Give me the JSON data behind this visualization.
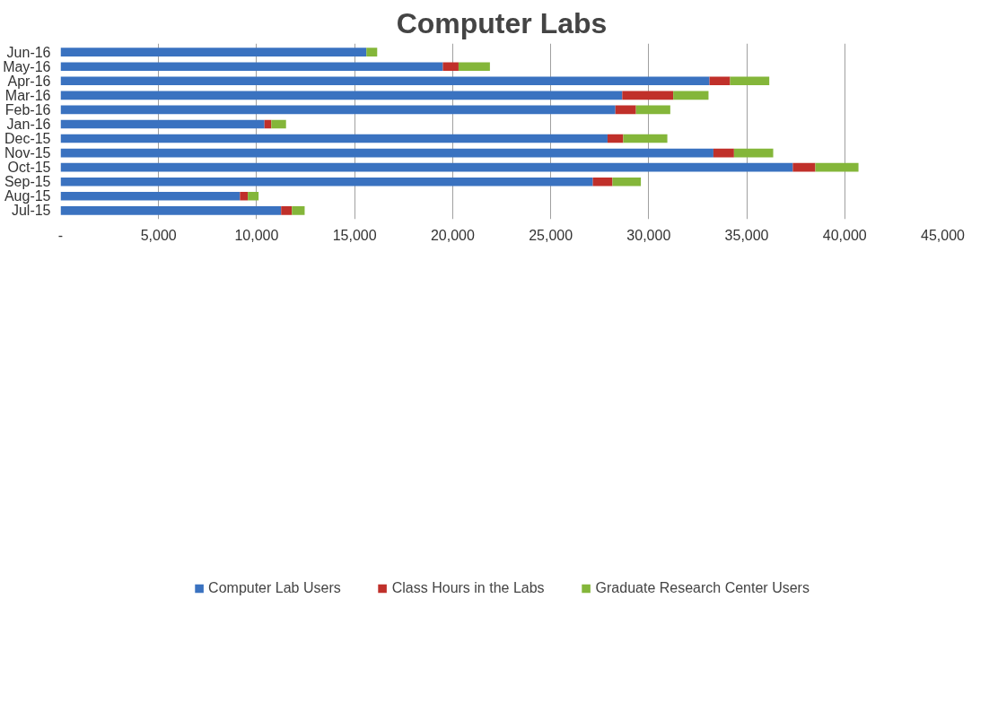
{
  "chart_data": {
    "type": "bar",
    "orientation": "horizontal",
    "stacked": true,
    "title": "Computer Labs",
    "categories": [
      "Jun-16",
      "May-16",
      "Apr-16",
      "Mar-16",
      "Feb-16",
      "Jan-16",
      "Dec-15",
      "Nov-15",
      "Oct-15",
      "Sep-15",
      "Aug-15",
      "Jul-15"
    ],
    "series": [
      {
        "name": "Computer Lab Users",
        "color": "#3a72c0",
        "values": [
          15600,
          19500,
          33100,
          28650,
          28300,
          10400,
          27900,
          33300,
          37350,
          27150,
          9150,
          11250
        ]
      },
      {
        "name": "Class Hours in the Labs",
        "color": "#c0302a",
        "values": [
          0,
          800,
          1050,
          2600,
          1050,
          350,
          800,
          1050,
          1150,
          1000,
          400,
          550
        ]
      },
      {
        "name": "Graduate Research Center Users",
        "color": "#84b63a",
        "values": [
          550,
          1600,
          2000,
          1800,
          1750,
          750,
          2250,
          2000,
          2200,
          1450,
          550,
          650
        ]
      }
    ],
    "xlim": [
      0,
      45000
    ],
    "xticks": [
      {
        "value": 0,
        "label": "-"
      },
      {
        "value": 5000,
        "label": "5,000"
      },
      {
        "value": 10000,
        "label": "10,000"
      },
      {
        "value": 15000,
        "label": "15,000"
      },
      {
        "value": 20000,
        "label": "20,000"
      },
      {
        "value": 25000,
        "label": "25,000"
      },
      {
        "value": 30000,
        "label": "30,000"
      },
      {
        "value": 35000,
        "label": "35,000"
      },
      {
        "value": 40000,
        "label": "40,000"
      },
      {
        "value": 45000,
        "label": "45,000"
      }
    ],
    "grid": "x",
    "legend": "bottom"
  }
}
